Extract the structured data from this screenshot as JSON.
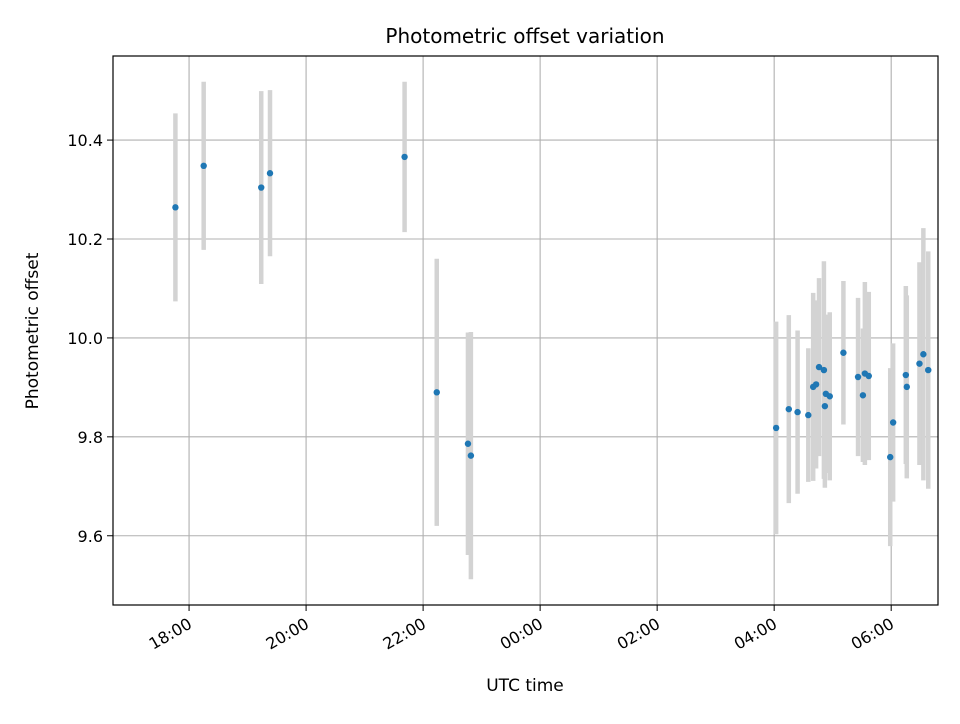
{
  "chart_data": {
    "type": "scatter",
    "title": "Photometric offset variation",
    "xlabel": "UTC time",
    "ylabel": "Photometric offset",
    "x_range_hours": [
      16.7,
      30.8
    ],
    "ylim": [
      9.46,
      10.57
    ],
    "x_ticks": [
      "18:00",
      "20:00",
      "22:00",
      "00:00",
      "02:00",
      "04:00",
      "06:00"
    ],
    "y_ticks": [
      "9.6",
      "9.8",
      "10.0",
      "10.2",
      "10.4"
    ],
    "grid": true,
    "marker_color": "#1f77b4",
    "errorbar_color": "#d3d3d3",
    "points": [
      {
        "t": "17:46",
        "y": 10.264,
        "err": 0.19
      },
      {
        "t": "18:15",
        "y": 10.348,
        "err": 0.17
      },
      {
        "t": "19:14",
        "y": 10.304,
        "err": 0.195
      },
      {
        "t": "19:23",
        "y": 10.333,
        "err": 0.168
      },
      {
        "t": "21:41",
        "y": 10.366,
        "err": 0.152
      },
      {
        "t": "22:14",
        "y": 9.89,
        "err": 0.27
      },
      {
        "t": "22:46",
        "y": 9.786,
        "err": 0.225
      },
      {
        "t": "22:49",
        "y": 9.762,
        "err": 0.25
      },
      {
        "t": "04:02",
        "y": 9.818,
        "err": 0.215
      },
      {
        "t": "04:15",
        "y": 9.856,
        "err": 0.19
      },
      {
        "t": "04:24",
        "y": 9.85,
        "err": 0.165
      },
      {
        "t": "04:35",
        "y": 9.844,
        "err": 0.135
      },
      {
        "t": "04:40",
        "y": 9.901,
        "err": 0.19
      },
      {
        "t": "04:43",
        "y": 9.906,
        "err": 0.17
      },
      {
        "t": "04:46",
        "y": 9.941,
        "err": 0.18
      },
      {
        "t": "04:51",
        "y": 9.935,
        "err": 0.22
      },
      {
        "t": "04:52",
        "y": 9.862,
        "err": 0.165
      },
      {
        "t": "04:53",
        "y": 9.887,
        "err": 0.16
      },
      {
        "t": "04:57",
        "y": 9.882,
        "err": 0.17
      },
      {
        "t": "05:11",
        "y": 9.97,
        "err": 0.145
      },
      {
        "t": "05:26",
        "y": 9.921,
        "err": 0.16
      },
      {
        "t": "05:31",
        "y": 9.884,
        "err": 0.135
      },
      {
        "t": "05:33",
        "y": 9.928,
        "err": 0.185
      },
      {
        "t": "05:37",
        "y": 9.923,
        "err": 0.17
      },
      {
        "t": "05:59",
        "y": 9.759,
        "err": 0.18
      },
      {
        "t": "06:02",
        "y": 9.829,
        "err": 0.16
      },
      {
        "t": "06:15",
        "y": 9.925,
        "err": 0.18
      },
      {
        "t": "06:16",
        "y": 9.901,
        "err": 0.185
      },
      {
        "t": "06:29",
        "y": 9.948,
        "err": 0.205
      },
      {
        "t": "06:33",
        "y": 9.967,
        "err": 0.255
      },
      {
        "t": "06:38",
        "y": 9.935,
        "err": 0.24
      }
    ]
  }
}
